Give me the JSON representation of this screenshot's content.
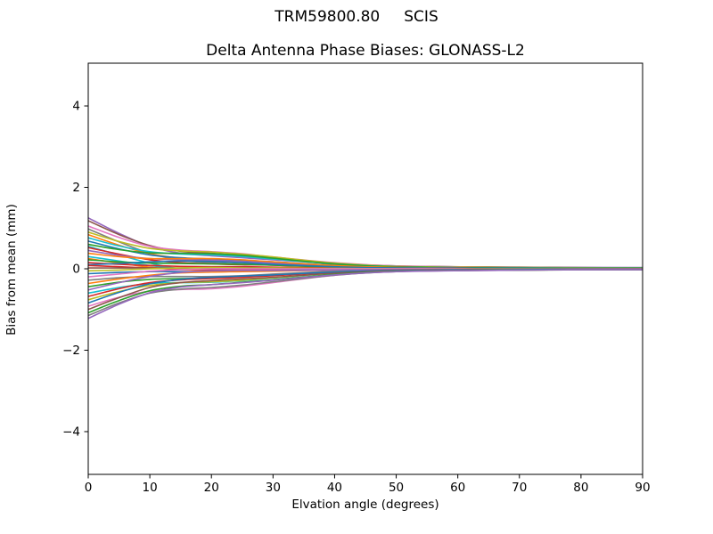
{
  "figure": {
    "suptitle": "TRM59800.80     SCIS",
    "background": "#ffffff",
    "spine_color": "#000000",
    "text_color": "#000000"
  },
  "chart_data": {
    "type": "line",
    "title": "Delta Antenna Phase Biases: GLONASS-L2",
    "xlabel": "Elvation angle (degrees)",
    "ylabel": "Bias from mean (mm)",
    "xlim": [
      0,
      90
    ],
    "ylim": [
      -5.05,
      5.05
    ],
    "xticks": [
      0,
      10,
      20,
      30,
      40,
      50,
      60,
      70,
      80,
      90
    ],
    "yticks": [
      -4,
      -2,
      0,
      2,
      4
    ],
    "grid": false,
    "legend": "none",
    "line_width": 1.6,
    "x": [
      0,
      5,
      10,
      15,
      20,
      25,
      30,
      40,
      50,
      70,
      90
    ],
    "series": [
      {
        "color": "#9467bd",
        "values": [
          1.25,
          0.87,
          0.55,
          0.38,
          0.32,
          0.27,
          0.22,
          0.13,
          0.06,
          0.04,
          0.03
        ]
      },
      {
        "color": "#8c564b",
        "values": [
          1.18,
          0.84,
          0.57,
          0.43,
          0.38,
          0.33,
          0.27,
          0.14,
          0.07,
          0.04,
          0.02
        ]
      },
      {
        "color": "#e377c2",
        "values": [
          1.05,
          0.77,
          0.55,
          0.46,
          0.42,
          0.37,
          0.29,
          0.15,
          0.07,
          0.03,
          0.02
        ]
      },
      {
        "color": "#7f7f7f",
        "values": [
          0.98,
          0.66,
          0.38,
          0.21,
          0.15,
          0.12,
          0.11,
          0.07,
          0.04,
          0.03,
          0.02
        ]
      },
      {
        "color": "#bcbd22",
        "values": [
          0.9,
          0.67,
          0.5,
          0.44,
          0.41,
          0.36,
          0.29,
          0.14,
          0.06,
          0.03,
          0.02
        ]
      },
      {
        "color": "#ff7f0e",
        "values": [
          0.84,
          0.58,
          0.37,
          0.26,
          0.21,
          0.18,
          0.15,
          0.08,
          0.04,
          0.02,
          0.02
        ]
      },
      {
        "color": "#17becf",
        "values": [
          0.76,
          0.56,
          0.42,
          0.36,
          0.34,
          0.3,
          0.24,
          0.12,
          0.05,
          0.02,
          0.02
        ]
      },
      {
        "color": "#1f77b4",
        "values": [
          0.68,
          0.49,
          0.34,
          0.27,
          0.24,
          0.21,
          0.17,
          0.09,
          0.04,
          0.02,
          0.01
        ]
      },
      {
        "color": "#2ca02c",
        "values": [
          0.6,
          0.47,
          0.39,
          0.38,
          0.37,
          0.33,
          0.26,
          0.12,
          0.05,
          0.02,
          0.02
        ]
      },
      {
        "color": "#17becf",
        "values": [
          0.55,
          0.34,
          0.14,
          0.0,
          -0.05,
          -0.05,
          -0.03,
          0.0,
          0.01,
          0.01,
          0.01
        ]
      },
      {
        "color": "#d62728",
        "values": [
          0.52,
          0.36,
          0.22,
          0.15,
          0.12,
          0.1,
          0.09,
          0.05,
          0.03,
          0.01,
          0.01
        ]
      },
      {
        "color": "#9467bd",
        "values": [
          0.45,
          0.33,
          0.25,
          0.22,
          0.21,
          0.18,
          0.14,
          0.07,
          0.03,
          0.01,
          0.01
        ]
      },
      {
        "color": "#ff7f0e",
        "values": [
          0.38,
          0.3,
          0.25,
          0.25,
          0.25,
          0.22,
          0.17,
          0.08,
          0.03,
          0.01,
          0.01
        ]
      },
      {
        "color": "#17becf",
        "values": [
          0.3,
          0.19,
          0.08,
          0.0,
          -0.03,
          -0.03,
          -0.02,
          0.0,
          0.01,
          0.01,
          0.01
        ]
      },
      {
        "color": "#ff7f0e",
        "values": [
          0.25,
          0.14,
          0.04,
          -0.02,
          -0.04,
          -0.03,
          -0.02,
          -0.01,
          0.0,
          0.0,
          0.0
        ]
      },
      {
        "color": "#2ca02c",
        "values": [
          0.22,
          0.17,
          0.14,
          0.13,
          0.12,
          0.11,
          0.09,
          0.04,
          0.02,
          0.01,
          0.01
        ]
      },
      {
        "color": "#d62728",
        "values": [
          0.15,
          0.11,
          0.08,
          0.06,
          0.05,
          0.05,
          0.04,
          0.02,
          0.01,
          0.0,
          0.0
        ]
      },
      {
        "color": "#1f77b4",
        "values": [
          0.1,
          0.13,
          0.17,
          0.19,
          0.18,
          0.15,
          0.11,
          0.05,
          0.02,
          0.01,
          0.0
        ]
      },
      {
        "color": "#d62728",
        "values": [
          0.08,
          0.05,
          0.02,
          -0.01,
          -0.02,
          -0.02,
          -0.01,
          0.0,
          0.0,
          0.0,
          0.0
        ]
      },
      {
        "color": "#8c564b",
        "values": [
          0.02,
          0.02,
          0.02,
          0.02,
          0.03,
          0.03,
          0.02,
          0.01,
          0.0,
          0.0,
          0.0
        ]
      },
      {
        "color": "#bcbd22",
        "values": [
          -0.05,
          -0.03,
          0.0,
          0.02,
          0.03,
          0.02,
          0.02,
          0.01,
          0.0,
          0.0,
          0.0
        ]
      },
      {
        "color": "#1f77b4",
        "values": [
          -0.12,
          -0.09,
          -0.07,
          -0.07,
          -0.07,
          -0.06,
          -0.04,
          -0.02,
          -0.01,
          0.0,
          0.0
        ]
      },
      {
        "color": "#e377c2",
        "values": [
          -0.2,
          -0.13,
          -0.06,
          -0.02,
          0.0,
          0.0,
          0.0,
          0.0,
          0.0,
          0.0,
          0.0
        ]
      },
      {
        "color": "#7f7f7f",
        "values": [
          -0.28,
          -0.22,
          -0.19,
          -0.19,
          -0.19,
          -0.17,
          -0.13,
          -0.06,
          -0.02,
          -0.01,
          -0.01
        ]
      },
      {
        "color": "#ff7f0e",
        "values": [
          -0.36,
          -0.25,
          -0.16,
          -0.1,
          -0.08,
          -0.07,
          -0.06,
          -0.03,
          -0.02,
          -0.01,
          -0.01
        ]
      },
      {
        "color": "#2ca02c",
        "values": [
          -0.44,
          -0.33,
          -0.26,
          -0.24,
          -0.23,
          -0.2,
          -0.16,
          -0.08,
          -0.03,
          -0.01,
          -0.01
        ]
      },
      {
        "color": "#9467bd",
        "values": [
          -0.52,
          -0.34,
          -0.19,
          -0.09,
          -0.05,
          -0.04,
          -0.04,
          -0.03,
          -0.02,
          -0.02,
          -0.01
        ]
      },
      {
        "color": "#17becf",
        "values": [
          -0.6,
          -0.46,
          -0.36,
          -0.34,
          -0.33,
          -0.29,
          -0.23,
          -0.11,
          -0.05,
          -0.02,
          -0.01
        ]
      },
      {
        "color": "#d62728",
        "values": [
          -0.68,
          -0.49,
          -0.34,
          -0.27,
          -0.24,
          -0.21,
          -0.17,
          -0.09,
          -0.04,
          -0.02,
          -0.01
        ]
      },
      {
        "color": "#bcbd22",
        "values": [
          -0.76,
          -0.56,
          -0.41,
          -0.34,
          -0.32,
          -0.28,
          -0.22,
          -0.11,
          -0.05,
          -0.02,
          -0.02
        ]
      },
      {
        "color": "#1f77b4",
        "values": [
          -0.84,
          -0.58,
          -0.37,
          -0.26,
          -0.21,
          -0.18,
          -0.15,
          -0.08,
          -0.04,
          -0.02,
          -0.02
        ]
      },
      {
        "color": "#e377c2",
        "values": [
          -0.92,
          -0.7,
          -0.55,
          -0.51,
          -0.49,
          -0.43,
          -0.34,
          -0.16,
          -0.07,
          -0.03,
          -0.02
        ]
      },
      {
        "color": "#8c564b",
        "values": [
          -1.0,
          -0.71,
          -0.46,
          -0.34,
          -0.29,
          -0.25,
          -0.21,
          -0.11,
          -0.05,
          -0.03,
          -0.02
        ]
      },
      {
        "color": "#2ca02c",
        "values": [
          -1.08,
          -0.78,
          -0.54,
          -0.43,
          -0.39,
          -0.33,
          -0.27,
          -0.14,
          -0.06,
          -0.03,
          -0.02
        ]
      },
      {
        "color": "#7f7f7f",
        "values": [
          -1.15,
          -0.84,
          -0.6,
          -0.5,
          -0.46,
          -0.4,
          -0.32,
          -0.16,
          -0.07,
          -0.03,
          -0.02
        ]
      },
      {
        "color": "#9467bd",
        "values": [
          -1.22,
          -0.87,
          -0.59,
          -0.45,
          -0.39,
          -0.34,
          -0.28,
          -0.15,
          -0.07,
          -0.03,
          -0.02
        ]
      }
    ]
  }
}
